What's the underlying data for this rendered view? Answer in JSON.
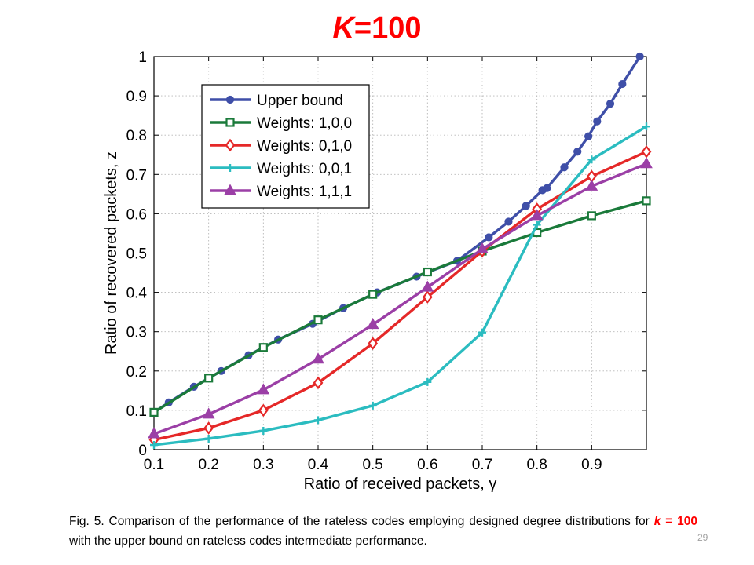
{
  "slide": {
    "title_k": "K",
    "title_rest": "=100",
    "page_number": "29",
    "caption": {
      "before": "Fig. 5. Comparison of the performance of the rateless codes employing designed degree distributions for ",
      "emph_k": "k",
      "emph_rest": " = 100",
      "after": " with the upper bound on rateless codes intermediate performance."
    }
  },
  "colors": {
    "title": "#ff0000",
    "upper_bound": "#3f4fa8",
    "w100": "#1a7a3a",
    "w010": "#e52828",
    "w001": "#2bbcc0",
    "w111": "#9b3fa6"
  },
  "chart_data": {
    "type": "line",
    "title": "K=100",
    "xlabel": "Ratio of received packets, γ",
    "ylabel": "Ratio of recovered packets, z",
    "xlim": [
      0.1,
      1.0
    ],
    "ylim": [
      0,
      1
    ],
    "x_ticks": [
      "0.1",
      "0.2",
      "0.3",
      "0.4",
      "0.5",
      "0.6",
      "0.7",
      "0.8",
      "0.9"
    ],
    "x_tick_values": [
      0.1,
      0.2,
      0.3,
      0.4,
      0.5,
      0.6,
      0.7,
      0.8,
      0.9
    ],
    "y_ticks": [
      "0",
      "0.1",
      "0.2",
      "0.3",
      "0.4",
      "0.5",
      "0.6",
      "0.7",
      "0.8",
      "0.9",
      "1"
    ],
    "y_tick_values": [
      0,
      0.1,
      0.2,
      0.3,
      0.4,
      0.5,
      0.6,
      0.7,
      0.8,
      0.9,
      1.0
    ],
    "grid": true,
    "legend_position": "top-left",
    "series": [
      {
        "name": "Upper bound",
        "color": "#3f4fa8",
        "marker": "circle",
        "x": [
          0.1,
          0.127,
          0.173,
          0.223,
          0.273,
          0.327,
          0.39,
          0.446,
          0.508,
          0.58,
          0.654,
          0.712,
          0.748,
          0.78,
          0.81,
          0.818,
          0.85,
          0.874,
          0.894,
          0.91,
          0.934,
          0.956,
          0.988
        ],
        "y": [
          0.095,
          0.12,
          0.16,
          0.2,
          0.24,
          0.28,
          0.32,
          0.36,
          0.4,
          0.44,
          0.48,
          0.54,
          0.58,
          0.62,
          0.66,
          0.665,
          0.718,
          0.758,
          0.797,
          0.835,
          0.88,
          0.93,
          1.0
        ]
      },
      {
        "name": "Weights: 1,0,0",
        "color": "#1a7a3a",
        "marker": "square",
        "x": [
          0.1,
          0.2,
          0.3,
          0.4,
          0.5,
          0.6,
          0.7,
          0.8,
          0.9,
          1.0
        ],
        "y": [
          0.095,
          0.182,
          0.26,
          0.33,
          0.395,
          0.452,
          0.505,
          0.552,
          0.595,
          0.633
        ]
      },
      {
        "name": "Weights: 0,1,0",
        "color": "#e52828",
        "marker": "diamond",
        "x": [
          0.1,
          0.2,
          0.3,
          0.4,
          0.5,
          0.6,
          0.7,
          0.8,
          0.9,
          1.0
        ],
        "y": [
          0.025,
          0.055,
          0.1,
          0.17,
          0.27,
          0.388,
          0.505,
          0.612,
          0.695,
          0.758
        ]
      },
      {
        "name": "Weights: 0,0,1",
        "color": "#2bbcc0",
        "marker": "plus",
        "x": [
          0.1,
          0.2,
          0.3,
          0.4,
          0.5,
          0.6,
          0.7,
          0.8,
          0.9,
          1.0
        ],
        "y": [
          0.012,
          0.028,
          0.048,
          0.075,
          0.112,
          0.172,
          0.298,
          0.572,
          0.738,
          0.822
        ]
      },
      {
        "name": "Weights: 1,1,1",
        "color": "#9b3fa6",
        "marker": "triangle",
        "x": [
          0.1,
          0.2,
          0.3,
          0.4,
          0.5,
          0.6,
          0.7,
          0.8,
          0.9,
          1.0
        ],
        "y": [
          0.04,
          0.09,
          0.152,
          0.23,
          0.318,
          0.413,
          0.51,
          0.595,
          0.67,
          0.727
        ]
      }
    ]
  }
}
